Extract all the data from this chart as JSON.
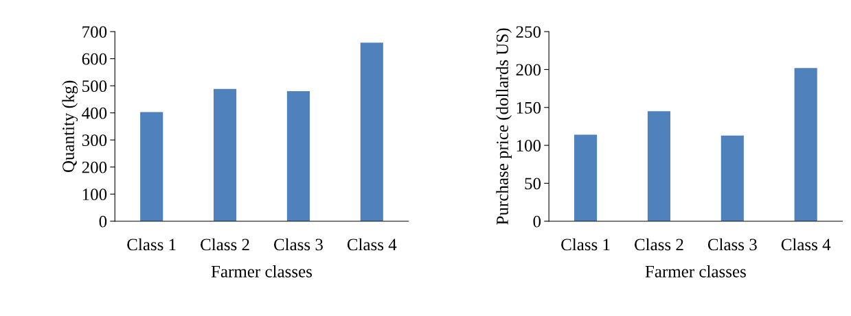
{
  "chart_data": [
    {
      "type": "bar",
      "categories": [
        "Class 1",
        "Class 2",
        "Class 3",
        "Class 4"
      ],
      "xlabel": "Farmer classes",
      "ylabel": "Quantity (kg)",
      "values": [
        403,
        488,
        480,
        659
      ],
      "color": "#4f81bd",
      "ylim": [
        0,
        700
      ],
      "yticks": [
        0,
        100,
        200,
        300,
        400,
        500,
        600,
        700
      ],
      "grid": false,
      "legend": false
    },
    {
      "type": "bar",
      "categories": [
        "Class 1",
        "Class 2",
        "Class 3",
        "Class 4"
      ],
      "xlabel": "Farmer classes",
      "ylabel": "Purchase price (dollards US)",
      "values": [
        114,
        145,
        113,
        202
      ],
      "color": "#4f81bd",
      "ylim": [
        0,
        250
      ],
      "yticks": [
        0,
        50,
        100,
        150,
        200,
        250
      ],
      "grid": false,
      "legend": false
    }
  ]
}
